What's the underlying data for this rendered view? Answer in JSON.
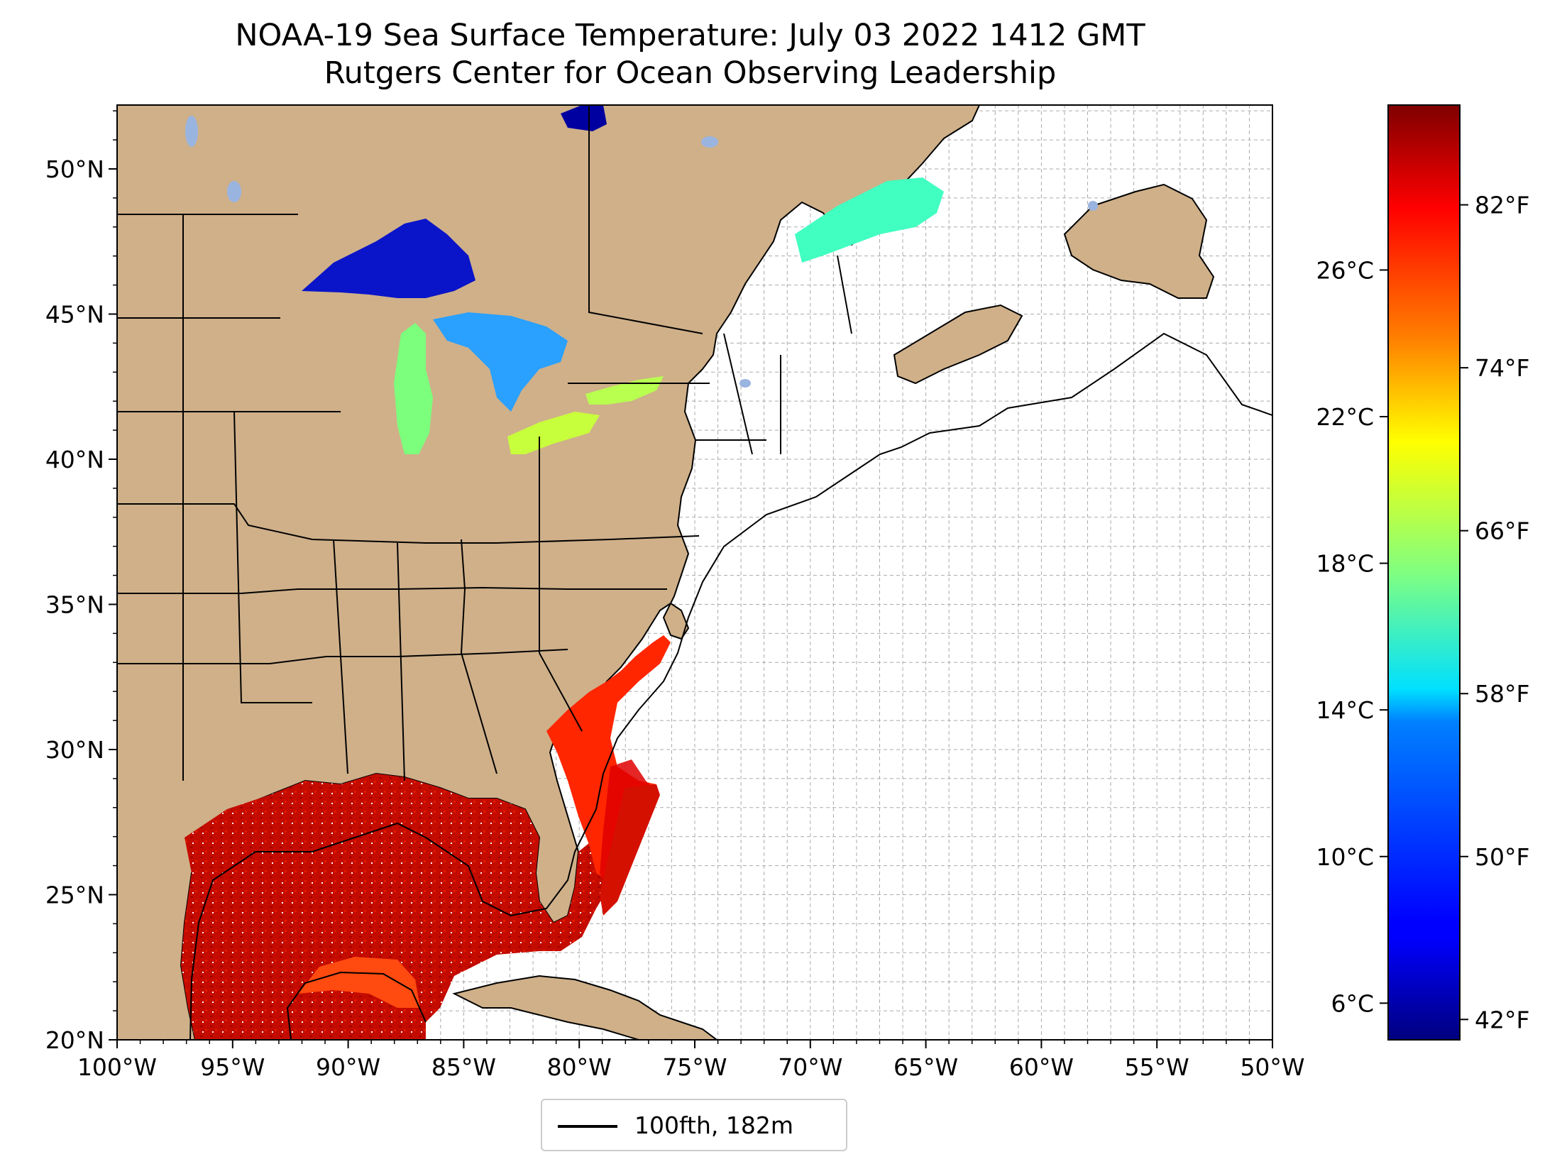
{
  "title": {
    "line1": "NOAA-19 Sea Surface Temperature: July 03 2022 1412 GMT",
    "line2": "Rutgers Center for Ocean Observing Leadership"
  },
  "map": {
    "lon_range": [
      -100,
      -50
    ],
    "lat_range": [
      20,
      52.2
    ],
    "x_ticks": [
      "100°W",
      "95°W",
      "90°W",
      "85°W",
      "80°W",
      "75°W",
      "70°W",
      "65°W",
      "60°W",
      "55°W",
      "50°W"
    ],
    "y_ticks": [
      "20°N",
      "25°N",
      "30°N",
      "35°N",
      "40°N",
      "45°N",
      "50°N"
    ],
    "gridlines": true,
    "land_color": "#cfb089",
    "lake_color": "#9ab4e0",
    "ocean_color": "#ffffff"
  },
  "colorbar": {
    "colormap": "jet",
    "range_c": [
      5,
      30.5
    ],
    "celsius_ticks": [
      "6°C",
      "10°C",
      "14°C",
      "18°C",
      "22°C",
      "26°C"
    ],
    "fahrenheit_ticks": [
      "42°F",
      "50°F",
      "58°F",
      "66°F",
      "74°F",
      "82°F"
    ]
  },
  "legend": {
    "label": "100fth, 182m",
    "placement": "bottom-center"
  }
}
